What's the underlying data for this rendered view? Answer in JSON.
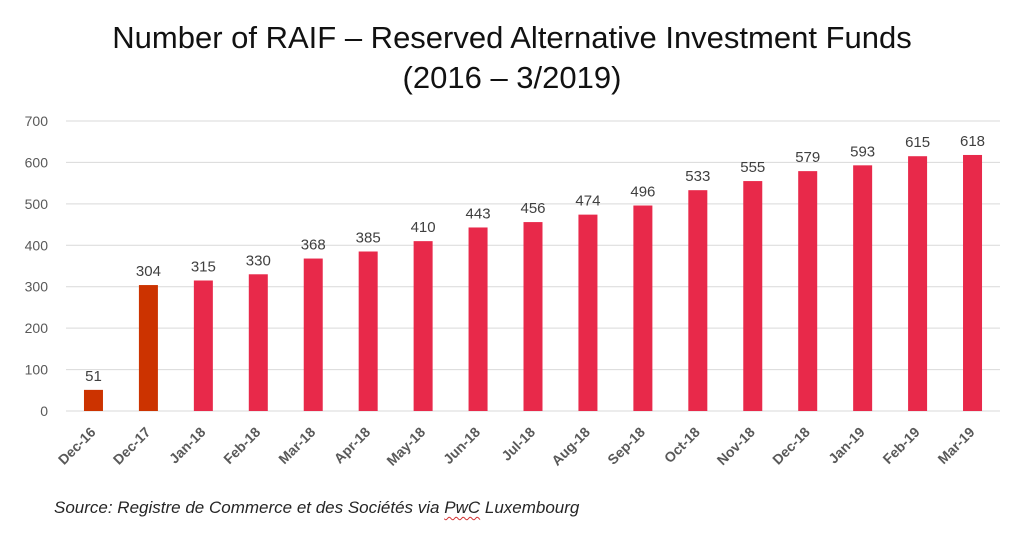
{
  "chart_data": {
    "type": "bar",
    "title": "Number of RAIF – Reserved Alternative Investment Funds",
    "subtitle": "(2016 – 3/2019)",
    "categories": [
      "Dec-16",
      "Dec-17",
      "Jan-18",
      "Feb-18",
      "Mar-18",
      "Apr-18",
      "May-18",
      "Jun-18",
      "Jul-18",
      "Aug-18",
      "Sep-18",
      "Oct-18",
      "Nov-18",
      "Dec-18",
      "Jan-19",
      "Feb-19",
      "Mar-19"
    ],
    "values": [
      51,
      304,
      315,
      330,
      368,
      385,
      410,
      443,
      456,
      474,
      496,
      533,
      555,
      579,
      593,
      615,
      618
    ],
    "bar_colors": [
      "#cc3300",
      "#cc3300",
      "#e8294a",
      "#e8294a",
      "#e8294a",
      "#e8294a",
      "#e8294a",
      "#e8294a",
      "#e8294a",
      "#e8294a",
      "#e8294a",
      "#e8294a",
      "#e8294a",
      "#e8294a",
      "#e8294a",
      "#e8294a",
      "#e8294a"
    ],
    "y_ticks": [
      0,
      100,
      200,
      300,
      400,
      500,
      600,
      700
    ],
    "ylim": [
      0,
      700
    ],
    "xlabel": "",
    "ylabel": "",
    "grid": true,
    "legend": "none"
  },
  "source": {
    "prefix": "Source:  Registre de Commerce et des Sociétés via ",
    "underlined": "PwC",
    "suffix": " Luxembourg"
  },
  "colors": {
    "gridline": "#d9d9d9",
    "axis_text": "#595959",
    "label_text": "#404040"
  }
}
